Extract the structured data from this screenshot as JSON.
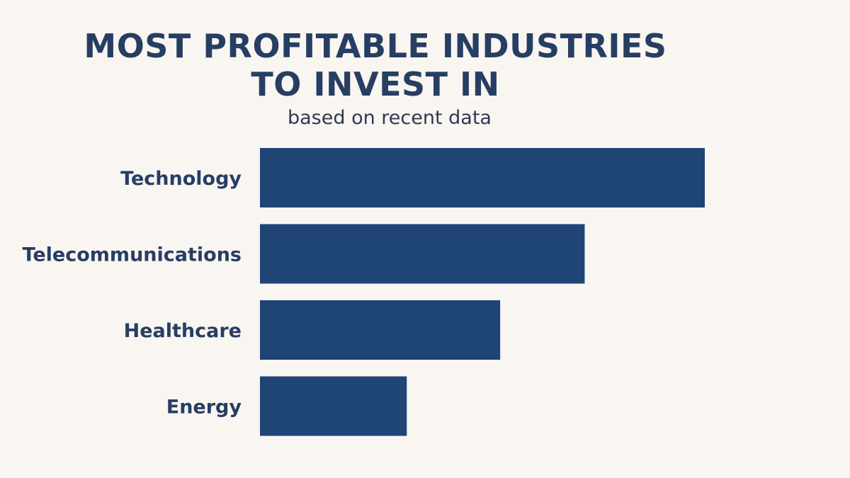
{
  "chart_data": {
    "type": "bar",
    "orientation": "horizontal",
    "title": [
      "MOST PROFITABLE INDUSTRIES",
      "TO INVEST IN"
    ],
    "subtitle": "based on recent data",
    "categories": [
      "Technology",
      "Telecommunications",
      "Healthcare",
      "Energy"
    ],
    "values": [
      100,
      73,
      54,
      33
    ],
    "xlim": [
      0,
      100
    ],
    "grid": false,
    "legend": "none",
    "bar_color": "#1f4476",
    "label_color": "#273e63",
    "background": "#f9f5f1"
  }
}
